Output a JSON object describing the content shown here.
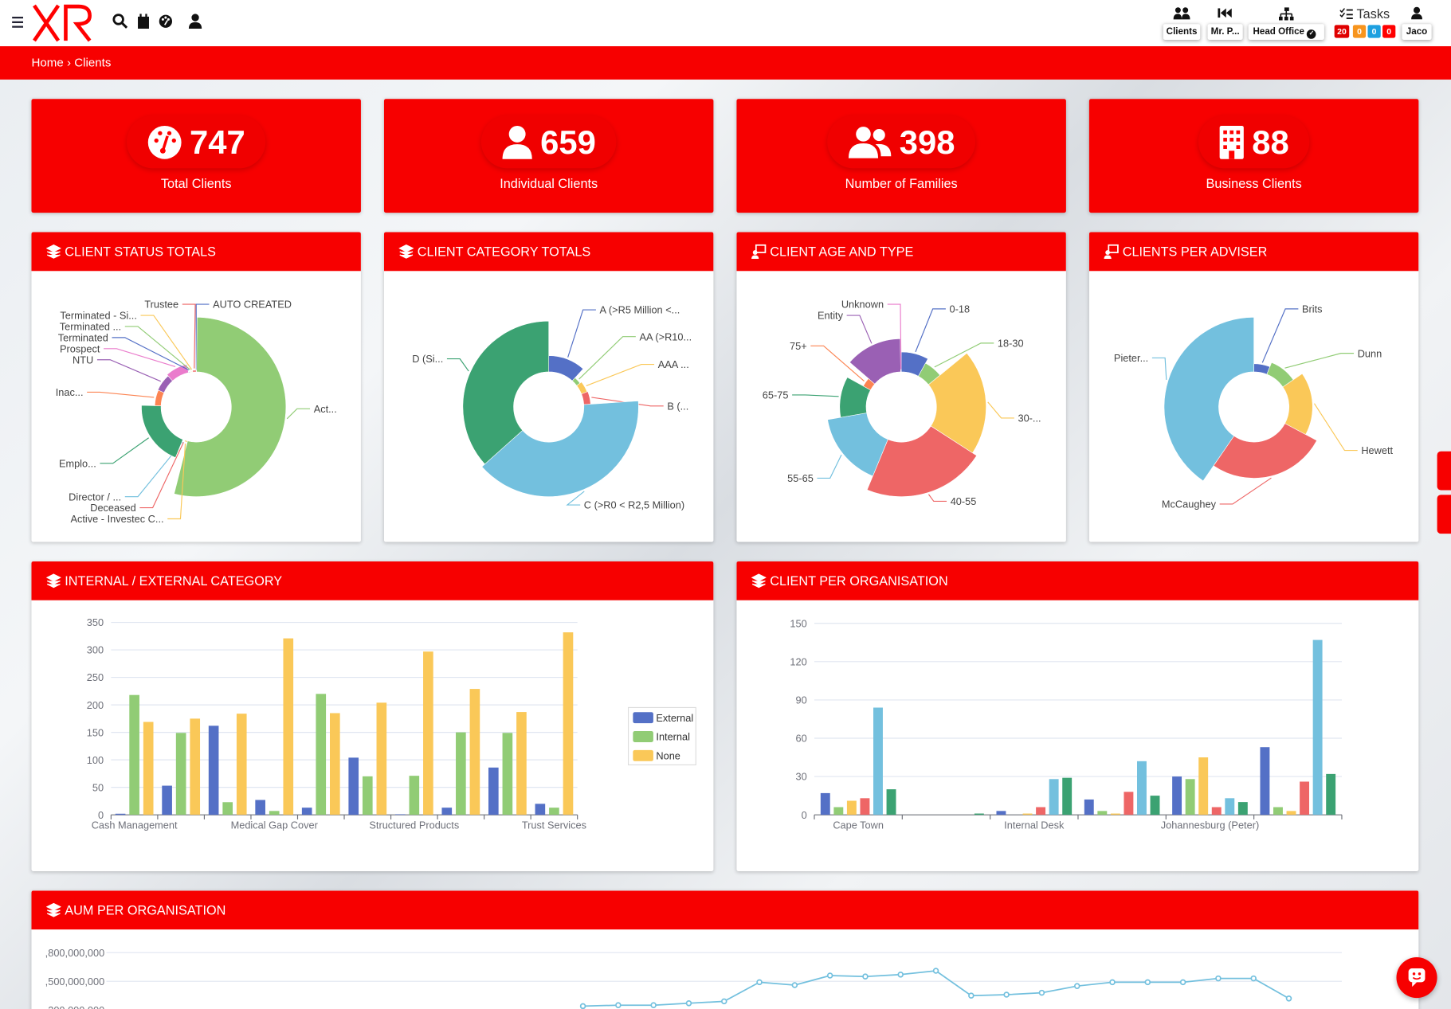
{
  "nav": {
    "brand": "XR",
    "menu_icon": "hamburger-icon",
    "left_icons": [
      "search-icon",
      "calendar-icon",
      "palette-icon",
      "user-tie-icon"
    ],
    "right": [
      {
        "label": "Clients",
        "icon": "users-icon"
      },
      {
        "label": "Mr. P...",
        "icon": "backward-icon"
      },
      {
        "label": "Head Office",
        "icon": "sitemap-icon"
      }
    ],
    "tasks": {
      "label": "Tasks",
      "badges": [
        {
          "value": "20",
          "color": "#e00000"
        },
        {
          "value": "0",
          "color": "#f7941d"
        },
        {
          "value": "0",
          "color": "#1ea0e0"
        },
        {
          "value": "0",
          "color": "#ff0000"
        }
      ]
    },
    "user": "Jaco"
  },
  "breadcrumb": {
    "home": "Home",
    "sep": "›",
    "current": "Clients"
  },
  "colors": {
    "brand": "#f70000",
    "palette": [
      "#5470c6",
      "#91cc75",
      "#fac858",
      "#ee6666",
      "#73c0de",
      "#3ba272",
      "#fc8452",
      "#9a60b4",
      "#ea7ccc"
    ]
  },
  "kpis": [
    {
      "value": "747",
      "label": "Total Clients",
      "icon": "tachometer-icon"
    },
    {
      "value": "659",
      "label": "Individual Clients",
      "icon": "user-icon"
    },
    {
      "value": "398",
      "label": "Number of Families",
      "icon": "users-icon"
    },
    {
      "value": "88",
      "label": "Business Clients",
      "icon": "building-icon"
    }
  ],
  "cards": {
    "status": "CLIENT STATUS TOTALS",
    "category": "CLIENT CATEGORY TOTALS",
    "age": "CLIENT AGE AND TYPE",
    "adviser": "CLIENTS PER ADVISER",
    "internal": "INTERNAL / EXTERNAL CATEGORY",
    "org": "CLIENT PER ORGANISATION",
    "aum": "AUM PER ORGANISATION"
  },
  "chart_data": [
    {
      "type": "pie",
      "rose": "radius",
      "labels": [
        "AUTO CREATED",
        "Act...",
        "Active - Investec C...",
        "Deceased",
        "Director / ...",
        "Emplo...",
        "Inac...",
        "NTU",
        "Prospect",
        "Terminated",
        "Terminated ...",
        "Terminated - Si...",
        "Trustee"
      ],
      "values": [
        1,
        340,
        8,
        3,
        3,
        122,
        39,
        42,
        52,
        4,
        4,
        4,
        10
      ]
    },
    {
      "type": "pie",
      "rose": "radius",
      "labels": [
        "A (>R5 Million <...",
        "AA (>R10...",
        "AAA ...",
        "B (...",
        "C (>R0 < R2,5 Million)",
        "D (Si..."
      ],
      "values": [
        83,
        21,
        31,
        35,
        280,
        260
      ]
    },
    {
      "type": "pie",
      "rose": "radius",
      "labels": [
        "0-18",
        "18-30",
        "30-...",
        "40-55",
        "55-65",
        "65-75",
        "75+",
        "Entity",
        "Unknown"
      ],
      "values": [
        60,
        45,
        150,
        165,
        120,
        80,
        25,
        100,
        2
      ]
    },
    {
      "type": "pie",
      "rose": "radius",
      "labels": [
        "Brits",
        "Dunn",
        "Hewett",
        "McCaughey",
        "Pieter..."
      ],
      "values": [
        45,
        70,
        130,
        200,
        302
      ]
    },
    {
      "type": "bar",
      "categories": [
        "Cash Management",
        "",
        "",
        "Medical Gap Cover",
        "",
        "",
        "Structured Products",
        "",
        "",
        "Trust Services"
      ],
      "ylim": [
        0,
        350
      ],
      "yticks": [
        "0",
        "50",
        "100",
        "150",
        "200",
        "250",
        "300",
        "350"
      ],
      "legend": "right",
      "grid": true,
      "series": [
        {
          "name": "External",
          "values": [
            2,
            53,
            162,
            27,
            13,
            104,
            1,
            13,
            86,
            20
          ]
        },
        {
          "name": "Internal",
          "values": [
            218,
            149,
            23,
            7,
            220,
            70,
            71,
            150,
            149,
            13
          ]
        },
        {
          "name": "None",
          "values": [
            169,
            175,
            184,
            321,
            185,
            204,
            297,
            229,
            187,
            332
          ]
        }
      ]
    },
    {
      "type": "bar",
      "categories": [
        "Cape Town",
        "",
        "Internal Desk",
        "",
        "Johannesburg (Peter)",
        ""
      ],
      "ylim": [
        0,
        150
      ],
      "yticks": [
        "0",
        "30",
        "60",
        "90",
        "120",
        "150"
      ],
      "grid": true,
      "series": [
        {
          "values": [
            17,
            0,
            3,
            12,
            30,
            53
          ]
        },
        {
          "values": [
            6,
            0,
            0,
            3,
            28,
            6
          ]
        },
        {
          "values": [
            11,
            0,
            1,
            1,
            45,
            3
          ]
        },
        {
          "values": [
            13,
            0,
            6,
            18,
            6,
            26
          ]
        },
        {
          "values": [
            84,
            0,
            28,
            42,
            13,
            137
          ]
        },
        {
          "values": [
            20,
            1,
            29,
            15,
            10,
            32
          ]
        }
      ]
    },
    {
      "type": "line",
      "grid": true,
      "yticks": [
        ",800,000,000",
        ",500,000,000",
        ",200,000,000"
      ],
      "values": [
        null,
        null,
        null,
        null,
        null,
        null,
        null,
        null,
        null,
        null,
        null,
        null,
        null,
        1240000000,
        1250000000,
        1250000000,
        1270000000,
        1290000000,
        1490000000,
        1460000000,
        1560000000,
        1550000000,
        1570000000,
        1610000000,
        1350000000,
        1360000000,
        1380000000,
        1450000000,
        1490000000,
        1490000000,
        1490000000,
        1530000000,
        1530000000,
        1320000000,
        null
      ]
    }
  ]
}
